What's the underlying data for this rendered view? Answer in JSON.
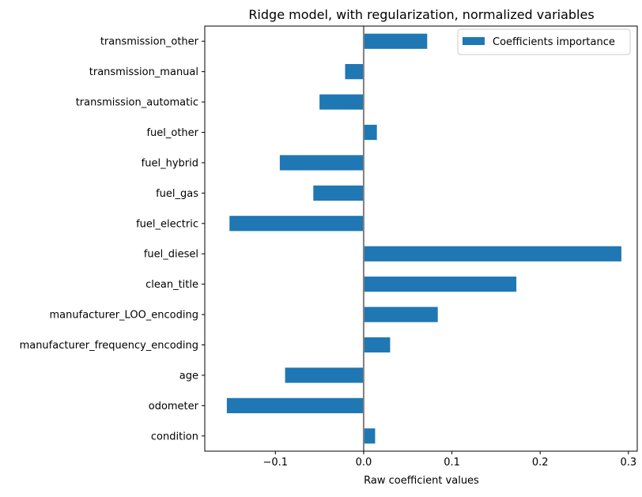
{
  "chart_data": {
    "type": "bar",
    "orientation": "horizontal",
    "title": "Ridge model, with regularization, normalized variables",
    "xlabel": "Raw coefficient values",
    "ylabel": "",
    "categories": [
      "condition",
      "odometer",
      "age",
      "manufacturer_frequency_encoding",
      "manufacturer_LOO_encoding",
      "clean_title",
      "fuel_diesel",
      "fuel_electric",
      "fuel_gas",
      "fuel_hybrid",
      "fuel_other",
      "transmission_automatic",
      "transmission_manual",
      "transmission_other"
    ],
    "series": [
      {
        "name": "Coefficients importance",
        "values": [
          0.013,
          -0.155,
          -0.089,
          0.03,
          0.084,
          0.173,
          0.292,
          -0.152,
          -0.057,
          -0.095,
          0.015,
          -0.05,
          -0.021,
          0.072
        ]
      }
    ],
    "xlim": [
      -0.18,
      0.31
    ],
    "xticks": [
      -0.1,
      0.0,
      0.1,
      0.2,
      0.3
    ],
    "xtick_labels": [
      "−0.1",
      "0.0",
      "0.1",
      "0.2",
      "0.3"
    ],
    "zero_line": true,
    "grid": false,
    "legend_position": "top-right",
    "colors": {
      "bar": "#1f77b4",
      "zero_line": "#808080",
      "axes": "#000000"
    }
  }
}
